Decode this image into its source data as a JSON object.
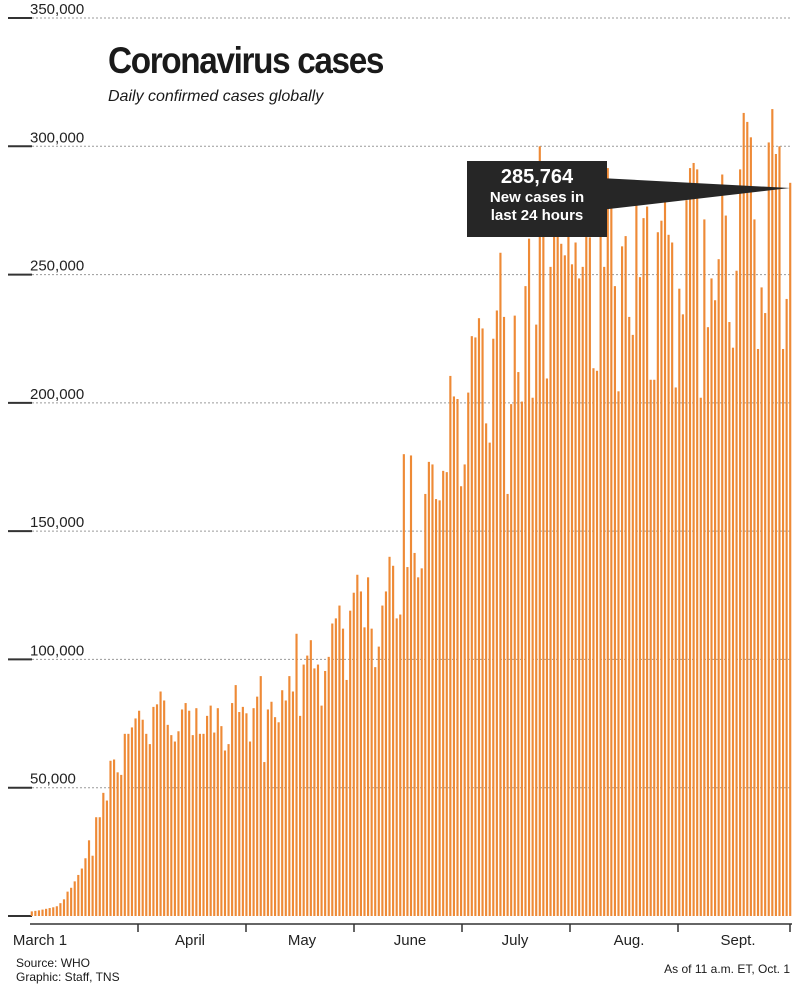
{
  "title": "Coronavirus cases",
  "subtitle": "Daily confirmed cases globally",
  "footer": {
    "source": "Source: WHO",
    "graphic": "Graphic: Staff, TNS",
    "as_of": "As of 11 a.m. ET, Oct. 1"
  },
  "callout": {
    "value": "285,764",
    "text": "New cases in last 24 hours"
  },
  "colors": {
    "bar": "#ee8a36",
    "gridline": "#9a9a9a",
    "axis": "#333333",
    "callout_bg": "#262626"
  },
  "chart_data": {
    "type": "bar",
    "title": "Coronavirus cases",
    "subtitle": "Daily confirmed cases globally",
    "ylim": [
      0,
      350000
    ],
    "y_ticks": [
      "350,000",
      "300,000",
      "250,000",
      "200,000",
      "150,000",
      "100,000",
      "50,000"
    ],
    "x_month_labels": [
      "March 1",
      "April",
      "May",
      "June",
      "July",
      "Aug.",
      "Sept."
    ],
    "gridlines": true,
    "values": [
      1800,
      2000,
      2200,
      2500,
      2800,
      3100,
      3400,
      3800,
      5000,
      6500,
      9500,
      11000,
      13500,
      16000,
      18500,
      22500,
      29500,
      23500,
      38500,
      38500,
      48000,
      45000,
      60500,
      61000,
      56000,
      55000,
      71000,
      71000,
      73500,
      77000,
      80000,
      76500,
      71000,
      67000,
      81500,
      82500,
      87500,
      84000,
      74500,
      70500,
      68000,
      72000,
      80500,
      83000,
      80000,
      70500,
      81000,
      71000,
      71000,
      78000,
      82000,
      71500,
      81000,
      74000,
      64500,
      67000,
      83000,
      90000,
      79500,
      81500,
      79000,
      68000,
      81000,
      85500,
      93500,
      60000,
      80500,
      83500,
      77500,
      75500,
      88000,
      84000,
      93500,
      87500,
      110000,
      78000,
      98000,
      101500,
      107500,
      96500,
      98000,
      82000,
      95500,
      101000,
      114000,
      116000,
      121000,
      112000,
      92000,
      119000,
      126000,
      133000,
      126500,
      112500,
      132000,
      112000,
      97000,
      105000,
      121000,
      126500,
      140000,
      136500,
      116000,
      117500,
      180000,
      136000,
      179500,
      141500,
      132000,
      135500,
      164500,
      177000,
      176000,
      162500,
      162000,
      173500,
      173000,
      210500,
      202500,
      201500,
      167500,
      176000,
      204000,
      226000,
      225500,
      233000,
      229000,
      192000,
      184500,
      225000,
      236000,
      258500,
      233500,
      164500,
      199500,
      234000,
      212000,
      200500,
      245500,
      264000,
      202000,
      230500,
      300000,
      270000,
      209500,
      253000,
      270000,
      266000,
      262000,
      257500,
      277000,
      254000,
      262500,
      248500,
      253000,
      290000,
      264500,
      213500,
      212500,
      292000,
      253000,
      291500,
      276000,
      245500,
      204500,
      261000,
      265000,
      233500,
      226500,
      278500,
      249000,
      272000,
      276500,
      209000,
      209000,
      266500,
      271000,
      280500,
      265500,
      262500,
      206000,
      244500,
      234500,
      279000,
      291500,
      293500,
      291000,
      202000,
      271500,
      229500,
      248500,
      240000,
      256000,
      289000,
      273000,
      231500,
      221500,
      251500,
      291000,
      313000,
      309500,
      303500,
      271500,
      221000,
      245000,
      235000,
      301500,
      314500,
      297000,
      300000,
      221000,
      240500,
      285764
    ]
  }
}
